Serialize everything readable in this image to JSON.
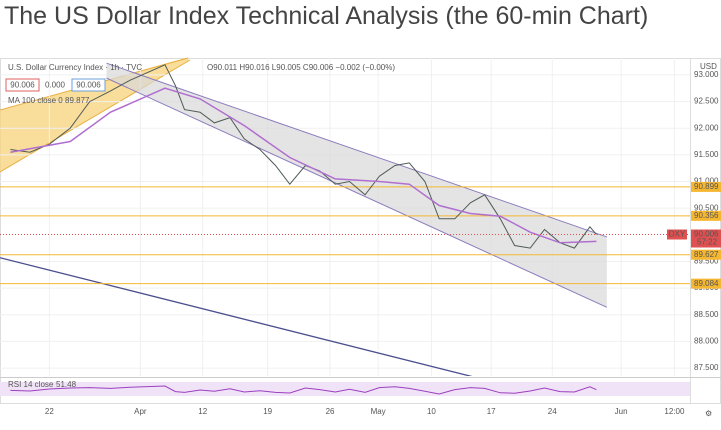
{
  "title": "The US Dollar Index Technical Analysis (the 60-min Chart)",
  "chart_data": {
    "type": "line",
    "symbol": "U.S. Dollar Currency Index · 1h · TVC",
    "ohlc": "O90.011 H90.016 L90.005 C90.006 −0.002 (−0.00%)",
    "boxes": [
      "90.006",
      "0.000",
      "90.006"
    ],
    "ma_label": "MA 100 close 0",
    "ma_value": "89.877",
    "currency": "USD",
    "rsi_label": "RSI 14 close",
    "rsi_value": "51.48",
    "ticker": "DXY",
    "countdown": "57:22",
    "last_price": 90.006,
    "xlim": [
      0,
      53.1
    ],
    "xticks": [
      {
        "value": 3.8,
        "label": "22"
      },
      {
        "value": 10.8,
        "label": "Apr"
      },
      {
        "value": 15.6,
        "label": "12"
      },
      {
        "value": 20.6,
        "label": "19"
      },
      {
        "value": 25.4,
        "label": "26"
      },
      {
        "value": 29.1,
        "label": "May"
      },
      {
        "value": 33.2,
        "label": "10"
      },
      {
        "value": 37.8,
        "label": "17"
      },
      {
        "value": 42.5,
        "label": "24"
      },
      {
        "value": 47.8,
        "label": "Jun"
      },
      {
        "value": 51.9,
        "label": "12:00"
      }
    ],
    "ylim": [
      87.37,
      93.28
    ],
    "yticks": [
      {
        "value": 93,
        "label": "93.000"
      },
      {
        "value": 92.5,
        "label": "92.500"
      },
      {
        "value": 92,
        "label": "92.000"
      },
      {
        "value": 91.5,
        "label": "91.500"
      },
      {
        "value": 91,
        "label": "91.000"
      },
      {
        "value": 90.5,
        "label": "90.500"
      },
      {
        "value": 89.5,
        "label": "89.500"
      },
      {
        "value": 89,
        "label": "89.000"
      },
      {
        "value": 88.5,
        "label": "88.500"
      },
      {
        "value": 88,
        "label": "88.000"
      },
      {
        "value": 87.5,
        "label": "87.500"
      }
    ],
    "levels": [
      90.899,
      90.356,
      89.627,
      89.084
    ],
    "level_color": "#f5b731",
    "series": [
      {
        "name": "DXY",
        "color": "#4f5b57",
        "x": [
          0.8,
          2.3,
          3.8,
          5.4,
          6.9,
          8.5,
          10,
          12.7,
          13.5,
          14.2,
          15.4,
          16.5,
          17.7,
          18.8,
          20,
          21.2,
          22.3,
          23.5,
          24.6,
          25.8,
          26.9,
          28.1,
          29.2,
          30.4,
          31.5,
          32.7,
          33.8,
          35,
          36.2,
          37.3,
          38.5,
          39.6,
          40.8,
          41.9,
          43.1,
          44.2,
          45.4,
          45.9
        ],
        "values": [
          91.6,
          91.55,
          91.7,
          92.0,
          92.5,
          92.7,
          92.9,
          93.19,
          92.8,
          92.35,
          92.3,
          92.1,
          92.2,
          91.8,
          91.6,
          91.3,
          90.95,
          91.3,
          91.2,
          90.95,
          91.0,
          90.75,
          91.1,
          91.3,
          91.35,
          91.0,
          90.3,
          90.3,
          90.6,
          90.75,
          90.3,
          89.8,
          89.75,
          90.1,
          89.85,
          89.75,
          90.15,
          90.006
        ]
      },
      {
        "name": "MA 100",
        "color": "#b06fd0",
        "x": [
          0.8,
          5.4,
          8.5,
          12.7,
          15.4,
          18.8,
          22.3,
          25.8,
          29.2,
          31.5,
          33.8,
          36.2,
          38.5,
          40.8,
          43.1,
          45.9
        ],
        "values": [
          91.55,
          91.75,
          92.3,
          92.75,
          92.55,
          92.05,
          91.45,
          91.05,
          91.0,
          90.95,
          90.55,
          90.4,
          90.35,
          90.05,
          89.85,
          89.877
        ]
      }
    ],
    "channel": {
      "color": "#8c7bbd",
      "x": [
        8.2,
        46.7
      ],
      "upper": [
        93.22,
        89.96
      ],
      "lower": [
        92.94,
        88.64
      ]
    },
    "trendline": {
      "color": "#4b4f8f",
      "x": [
        0,
        36.5
      ],
      "values": [
        89.57,
        87.33
      ]
    },
    "rsi": {
      "color": "#9c3fc0",
      "ylim": [
        0,
        100
      ],
      "x": [
        0.8,
        2.3,
        3.8,
        5.4,
        6.9,
        8.5,
        10,
        12.7,
        13.5,
        14.2,
        15.4,
        16.5,
        17.7,
        18.8,
        20,
        21.2,
        22.3,
        23.5,
        24.6,
        25.8,
        26.9,
        28.1,
        29.2,
        30.4,
        31.5,
        32.7,
        33.8,
        35,
        36.2,
        37.3,
        38.5,
        39.6,
        40.8,
        41.9,
        43.1,
        44.2,
        45.4,
        45.9
      ],
      "values": [
        48,
        45,
        55,
        60,
        62,
        58,
        64,
        70,
        42,
        38,
        50,
        44,
        56,
        40,
        46,
        38,
        35,
        60,
        52,
        40,
        54,
        38,
        62,
        66,
        58,
        44,
        30,
        52,
        62,
        58,
        36,
        34,
        45,
        60,
        42,
        40,
        66,
        51.48
      ]
    }
  }
}
